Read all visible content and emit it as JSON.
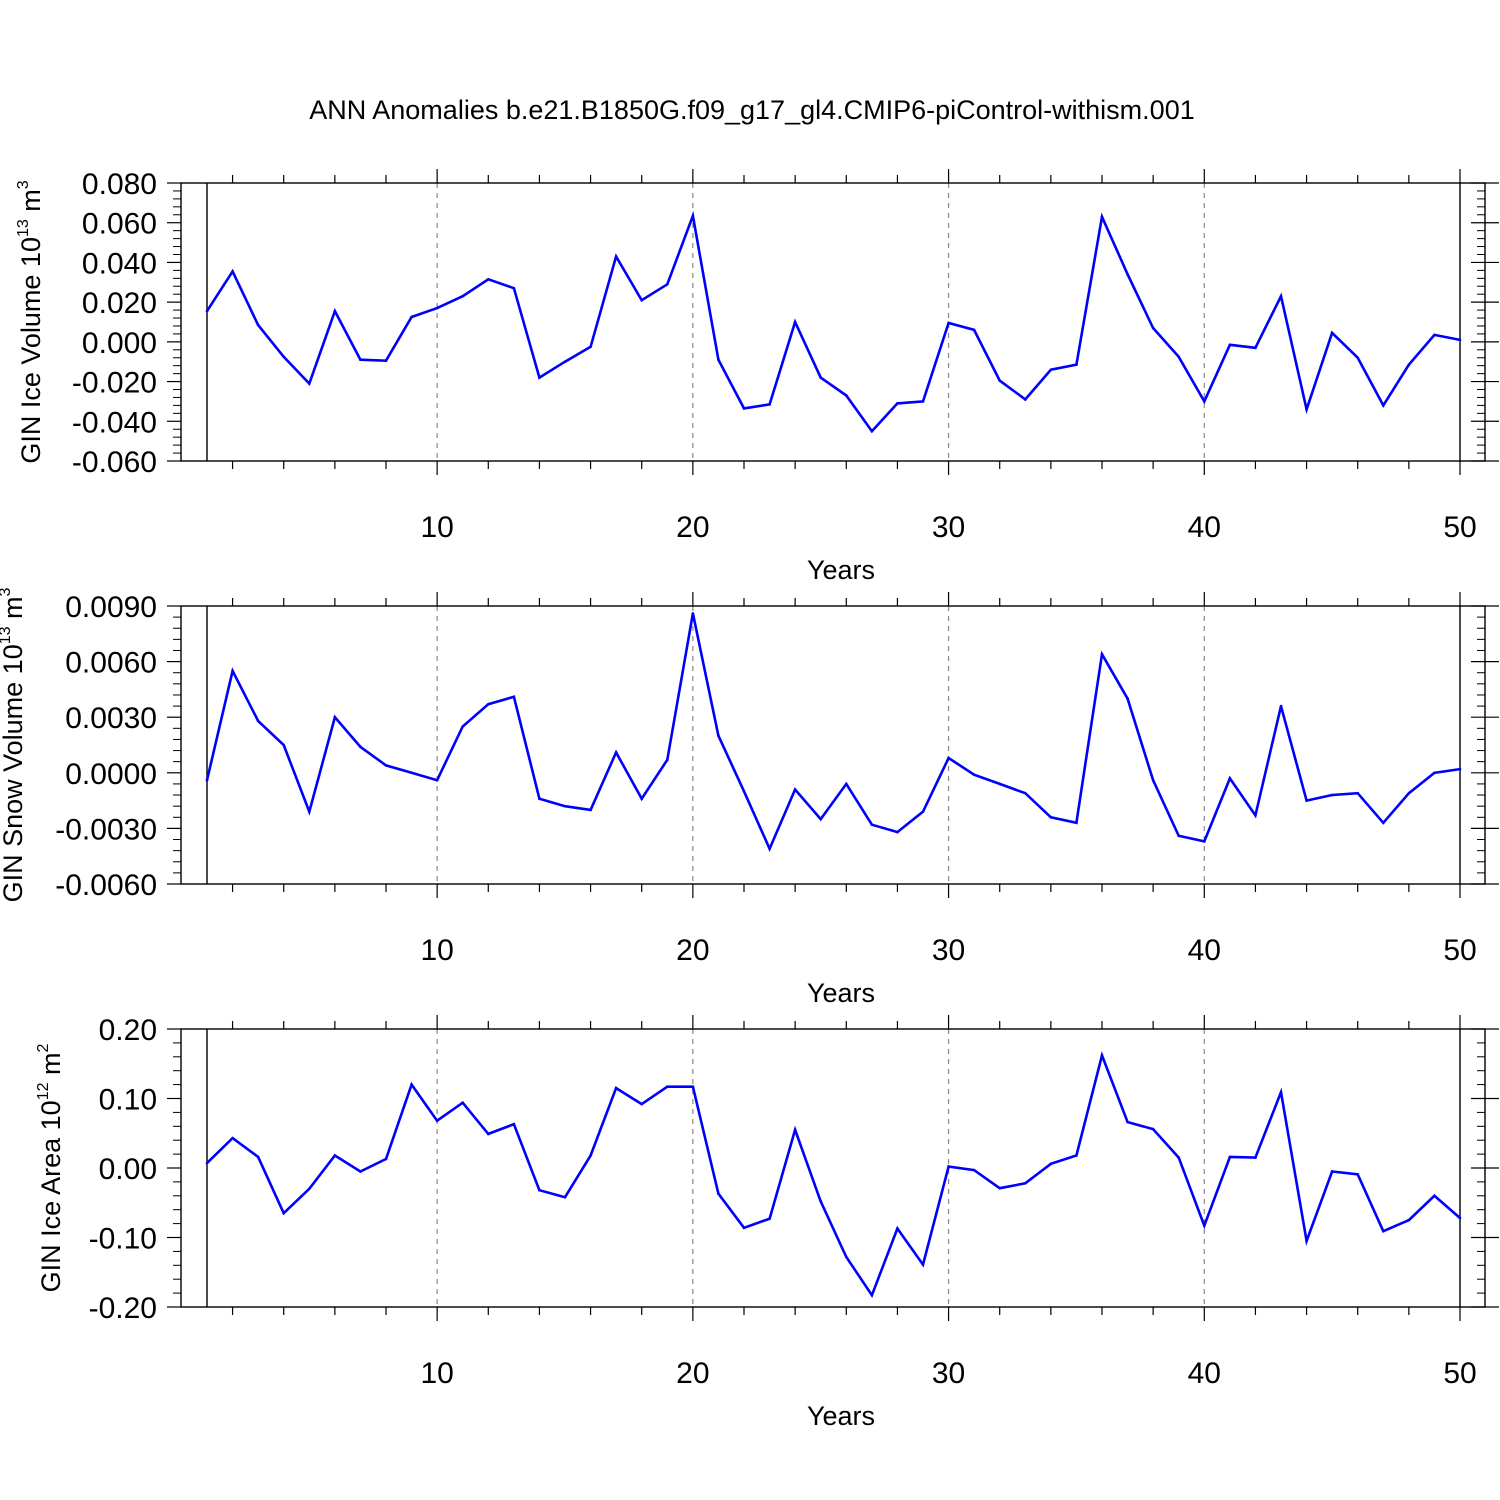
{
  "title": "ANN Anomalies b.e21.B1850G.f09_g17_gl4.CMIP6-piControl-withism.001",
  "colors": {
    "line": "#0000ff",
    "axis": "#000000",
    "grid": "#888888"
  },
  "chart_data": [
    {
      "type": "line",
      "ylabel": {
        "text": "GIN Ice Volume 10",
        "exp": "13",
        "unit": " m",
        "unit_exp": "3"
      },
      "xlabel": "Years",
      "xlim": [
        1,
        50
      ],
      "ylim": [
        -0.06,
        0.08
      ],
      "xticks": [
        10,
        20,
        30,
        40,
        50
      ],
      "xtick_labels": [
        "10",
        "20",
        "30",
        "40",
        "50"
      ],
      "yticks": [
        -0.06,
        -0.04,
        -0.02,
        0.0,
        0.02,
        0.04,
        0.06,
        0.08
      ],
      "ytick_labels": [
        "-0.060",
        "-0.040",
        "-0.020",
        "0.000",
        "0.020",
        "0.040",
        "0.060",
        "0.080"
      ],
      "grid_x": [
        10,
        20,
        30,
        40
      ],
      "x": [
        1,
        2,
        3,
        4,
        5,
        6,
        7,
        8,
        9,
        10,
        11,
        12,
        13,
        14,
        15,
        16,
        17,
        18,
        19,
        20,
        21,
        22,
        23,
        24,
        25,
        26,
        27,
        28,
        29,
        30,
        31,
        32,
        33,
        34,
        35,
        36,
        37,
        38,
        39,
        40,
        41,
        42,
        43,
        44,
        45,
        46,
        47,
        48,
        49,
        50
      ],
      "values": [
        0.0155,
        0.0355,
        0.0085,
        -0.0075,
        -0.021,
        0.0155,
        -0.009,
        -0.0095,
        0.0125,
        0.017,
        0.023,
        0.0315,
        0.027,
        -0.018,
        -0.01,
        -0.0025,
        0.043,
        0.021,
        0.029,
        0.0635,
        -0.009,
        -0.0335,
        -0.0315,
        0.01,
        -0.018,
        -0.027,
        -0.045,
        -0.031,
        -0.03,
        0.0095,
        0.006,
        -0.0195,
        -0.029,
        -0.014,
        -0.0115,
        0.063,
        0.034,
        0.007,
        -0.0075,
        -0.03,
        -0.0015,
        -0.003,
        0.023,
        -0.034,
        0.0045,
        -0.008,
        -0.032,
        -0.0115,
        0.0035,
        0.001
      ]
    },
    {
      "type": "line",
      "ylabel": {
        "text": "GIN Snow Volume 10",
        "exp": "13",
        "unit": " m",
        "unit_exp": "3"
      },
      "xlabel": "Years",
      "xlim": [
        1,
        50
      ],
      "ylim": [
        -0.006,
        0.009
      ],
      "xticks": [
        10,
        20,
        30,
        40,
        50
      ],
      "xtick_labels": [
        "10",
        "20",
        "30",
        "40",
        "50"
      ],
      "yticks": [
        -0.006,
        -0.003,
        0.0,
        0.003,
        0.006,
        0.009
      ],
      "ytick_labels": [
        "-0.0060",
        "-0.0030",
        "0.0000",
        "0.0030",
        "0.0060",
        "0.0090"
      ],
      "grid_x": [
        10,
        20,
        30,
        40
      ],
      "x": [
        1,
        2,
        3,
        4,
        5,
        6,
        7,
        8,
        9,
        10,
        11,
        12,
        13,
        14,
        15,
        16,
        17,
        18,
        19,
        20,
        21,
        22,
        23,
        24,
        25,
        26,
        27,
        28,
        29,
        30,
        31,
        32,
        33,
        34,
        35,
        36,
        37,
        38,
        39,
        40,
        41,
        42,
        43,
        44,
        45,
        46,
        47,
        48,
        49,
        50
      ],
      "values": [
        -0.0004,
        0.0055,
        0.0028,
        0.0015,
        -0.0021,
        0.003,
        0.0014,
        0.0004,
        0.0,
        -0.0004,
        0.0025,
        0.0037,
        0.0041,
        -0.0014,
        -0.0018,
        -0.002,
        0.0011,
        -0.0014,
        0.0007,
        0.0086,
        0.002,
        -0.001,
        -0.0041,
        -0.0009,
        -0.0025,
        -0.0006,
        -0.0028,
        -0.0032,
        -0.0021,
        0.0008,
        -0.0001,
        -0.0006,
        -0.0011,
        -0.0024,
        -0.0027,
        0.0064,
        0.004,
        -0.0004,
        -0.0034,
        -0.0037,
        -0.0003,
        -0.0023,
        0.0036,
        -0.0015,
        -0.0012,
        -0.0011,
        -0.0027,
        -0.0011,
        0.0,
        0.0002
      ]
    },
    {
      "type": "line",
      "ylabel": {
        "text": "GIN Ice Area 10",
        "exp": "12",
        "unit": " m",
        "unit_exp": "2"
      },
      "xlabel": "Years",
      "xlim": [
        1,
        50
      ],
      "ylim": [
        -0.2,
        0.2
      ],
      "xticks": [
        10,
        20,
        30,
        40,
        50
      ],
      "xtick_labels": [
        "10",
        "20",
        "30",
        "40",
        "50"
      ],
      "yticks": [
        -0.2,
        -0.1,
        0.0,
        0.1,
        0.2
      ],
      "ytick_labels": [
        "-0.20",
        "-0.10",
        "0.00",
        "0.10",
        "0.20"
      ],
      "grid_x": [
        10,
        20,
        30,
        40
      ],
      "x": [
        1,
        2,
        3,
        4,
        5,
        6,
        7,
        8,
        9,
        10,
        11,
        12,
        13,
        14,
        15,
        16,
        17,
        18,
        19,
        20,
        21,
        22,
        23,
        24,
        25,
        26,
        27,
        28,
        29,
        30,
        31,
        32,
        33,
        34,
        35,
        36,
        37,
        38,
        39,
        40,
        41,
        42,
        43,
        44,
        45,
        46,
        47,
        48,
        49,
        50
      ],
      "values": [
        0.007,
        0.043,
        0.016,
        -0.065,
        -0.03,
        0.018,
        -0.005,
        0.013,
        0.12,
        0.068,
        0.094,
        0.049,
        0.063,
        -0.032,
        -0.042,
        0.018,
        0.115,
        0.092,
        0.117,
        0.117,
        -0.037,
        -0.086,
        -0.073,
        0.055,
        -0.048,
        -0.128,
        -0.183,
        -0.087,
        -0.139,
        0.002,
        -0.003,
        -0.029,
        -0.022,
        0.006,
        0.018,
        0.162,
        0.066,
        0.056,
        0.015,
        -0.083,
        0.016,
        0.015,
        0.109,
        -0.105,
        -0.005,
        -0.009,
        -0.091,
        -0.075,
        -0.04,
        -0.072
      ]
    }
  ]
}
